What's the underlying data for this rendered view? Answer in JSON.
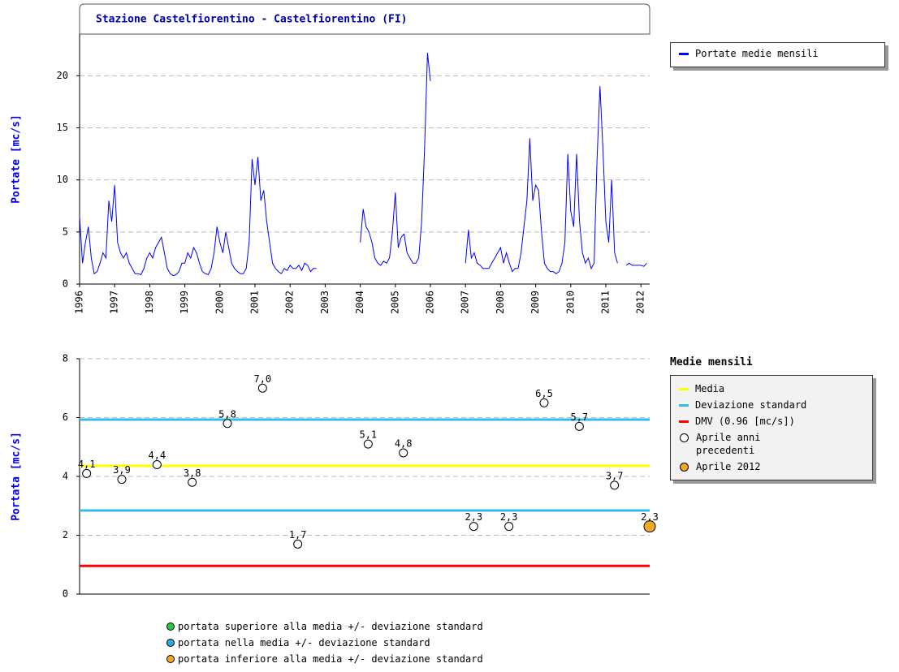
{
  "chart_data": [
    {
      "type": "line",
      "title": "Stazione Castelfiorentino - Castelfiorentino (FI)",
      "ylabel": "Portate [mc/s]",
      "x": [
        1996,
        1996.083,
        1996.167,
        1996.25,
        1996.333,
        1996.417,
        1996.5,
        1996.583,
        1996.667,
        1996.75,
        1996.833,
        1996.917,
        1997,
        1997.083,
        1997.167,
        1997.25,
        1997.333,
        1997.417,
        1997.5,
        1997.583,
        1997.667,
        1997.75,
        1997.833,
        1997.917,
        1998,
        1998.083,
        1998.167,
        1998.25,
        1998.333,
        1998.417,
        1998.5,
        1998.583,
        1998.667,
        1998.75,
        1998.833,
        1998.917,
        1999,
        1999.083,
        1999.167,
        1999.25,
        1999.333,
        1999.417,
        1999.5,
        1999.583,
        1999.667,
        1999.75,
        1999.833,
        1999.917,
        2000,
        2000.083,
        2000.167,
        2000.25,
        2000.333,
        2000.417,
        2000.5,
        2000.583,
        2000.667,
        2000.75,
        2000.833,
        2000.917,
        2001,
        2001.083,
        2001.167,
        2001.25,
        2001.333,
        2001.417,
        2001.5,
        2001.583,
        2001.667,
        2001.75,
        2001.833,
        2001.917,
        2002,
        2002.083,
        2002.167,
        2002.25,
        2002.333,
        2002.417,
        2002.5,
        2002.583,
        2002.667,
        2002.75,
        2003.5,
        2004,
        2004.083,
        2004.167,
        2004.25,
        2004.333,
        2004.417,
        2004.5,
        2004.583,
        2004.667,
        2004.75,
        2004.833,
        2004.917,
        2005,
        2005.083,
        2005.167,
        2005.25,
        2005.333,
        2005.417,
        2005.5,
        2005.583,
        2005.667,
        2005.75,
        2005.833,
        2005.917,
        2006,
        2006.5,
        2007,
        2007.083,
        2007.167,
        2007.25,
        2007.333,
        2007.417,
        2007.5,
        2007.583,
        2007.667,
        2007.75,
        2007.833,
        2007.917,
        2008,
        2008.083,
        2008.167,
        2008.25,
        2008.333,
        2008.417,
        2008.5,
        2008.583,
        2008.667,
        2008.75,
        2008.833,
        2008.917,
        2009,
        2009.083,
        2009.167,
        2009.25,
        2009.333,
        2009.417,
        2009.5,
        2009.583,
        2009.667,
        2009.75,
        2009.833,
        2009.917,
        2010,
        2010.083,
        2010.167,
        2010.25,
        2010.333,
        2010.417,
        2010.5,
        2010.583,
        2010.667,
        2010.75,
        2010.833,
        2010.917,
        2011,
        2011.083,
        2011.167,
        2011.25,
        2011.333,
        2011.45,
        2011.583,
        2011.667,
        2011.75,
        2011.833,
        2011.917,
        2012,
        2012.083,
        2012.167
      ],
      "series": [
        {
          "name": "Portate medie mensili",
          "color": "#0000ff",
          "values": [
            6.5,
            2.0,
            4.0,
            5.5,
            2.5,
            1.0,
            1.2,
            2.0,
            3.0,
            2.5,
            8.0,
            6.0,
            9.5,
            4.0,
            3.0,
            2.5,
            3.0,
            2.0,
            1.5,
            1.0,
            1.0,
            0.9,
            1.5,
            2.5,
            3.0,
            2.5,
            3.5,
            4.0,
            4.5,
            3.0,
            1.5,
            1.0,
            0.8,
            0.9,
            1.2,
            2.0,
            2.0,
            3.0,
            2.5,
            3.5,
            3.0,
            2.0,
            1.2,
            1.0,
            0.9,
            1.5,
            3.0,
            5.5,
            4.0,
            3.0,
            5.0,
            3.5,
            2.0,
            1.5,
            1.2,
            1.0,
            1.0,
            1.5,
            4.0,
            12.0,
            9.5,
            12.2,
            8.0,
            9.0,
            6.0,
            4.0,
            2.0,
            1.5,
            1.2,
            1.0,
            1.5,
            1.3,
            1.8,
            1.5,
            1.5,
            1.8,
            1.3,
            2.0,
            1.8,
            1.2,
            1.5,
            1.5,
            null,
            4.0,
            7.2,
            5.5,
            5.0,
            4.0,
            2.5,
            2.0,
            1.8,
            2.2,
            2.0,
            2.5,
            5.0,
            8.8,
            3.5,
            4.5,
            4.8,
            3.0,
            2.5,
            2.0,
            2.0,
            2.5,
            6.0,
            13.0,
            22.2,
            19.5,
            null,
            2.0,
            5.2,
            2.5,
            3.0,
            2.0,
            1.8,
            1.5,
            1.5,
            1.5,
            2.0,
            2.5,
            3.0,
            3.5,
            2.0,
            3.0,
            2.0,
            1.2,
            1.5,
            1.5,
            3.0,
            5.5,
            8.0,
            14.0,
            8.0,
            9.5,
            9.0,
            5.0,
            2.0,
            1.5,
            1.2,
            1.2,
            1.0,
            1.2,
            2.0,
            4.0,
            12.5,
            7.0,
            5.5,
            12.5,
            6.0,
            3.0,
            2.0,
            2.5,
            1.5,
            2.0,
            12.0,
            19.0,
            13.0,
            6.0,
            4.0,
            10.0,
            3.0,
            2.0,
            null,
            1.8,
            2.0,
            1.8,
            1.8,
            1.8,
            1.8,
            1.7,
            2.0
          ]
        }
      ],
      "xlim": [
        1996,
        2012.25
      ],
      "xticks": [
        1996,
        1997,
        1998,
        1999,
        2000,
        2001,
        2002,
        2003,
        2004,
        2005,
        2006,
        2007,
        2008,
        2009,
        2010,
        2011,
        2012
      ],
      "ylim": [
        0,
        24
      ],
      "yticks": [
        0,
        5,
        10,
        15,
        20
      ],
      "grid": true
    },
    {
      "type": "scatter",
      "legend_title": "Medie mensili",
      "ylabel": "Portata [mc/s]",
      "xlim": [
        1995.8,
        2012
      ],
      "ylim": [
        0,
        8
      ],
      "yticks": [
        0,
        2,
        4,
        6,
        8
      ],
      "grid": true,
      "lines": [
        {
          "name": "Media",
          "color": "#ffff00",
          "values": [
            4.36
          ]
        },
        {
          "name": "Deviazione standard",
          "color": "#33bbee",
          "values": [
            5.93,
            2.84
          ]
        },
        {
          "name": "DMV (0.96 [mc/s])",
          "color": "#ff0000",
          "values": [
            0.96
          ]
        }
      ],
      "series": [
        {
          "name": "Aprile anni precedenti",
          "color": "#ffffff",
          "x": [
            1996,
            1997,
            1998,
            1999,
            2000,
            2001,
            2002,
            2004,
            2005,
            2007,
            2008,
            2009,
            2010,
            2011
          ],
          "values": [
            4.1,
            3.9,
            4.4,
            3.8,
            5.8,
            7.0,
            1.7,
            5.1,
            4.8,
            2.3,
            2.3,
            6.5,
            5.7,
            3.7
          ],
          "value_labels": [
            "4,1",
            "3,9",
            "4,4",
            "3,8",
            "5,8",
            "7,0",
            "1,7",
            "5,1",
            "4,8",
            "2,3",
            "2,3",
            "6,5",
            "5,7",
            "3,7"
          ]
        },
        {
          "name": "Aprile 2012",
          "color": "#f5a623",
          "x": [
            2012
          ],
          "values": [
            2.3
          ],
          "value_labels": [
            "2,3"
          ]
        }
      ],
      "notes": [
        {
          "text": "portata superiore alla media +/- deviazione standard",
          "color": "#22cc44"
        },
        {
          "text": "portata nella media +/- deviazione standard",
          "color": "#2aa8e0"
        },
        {
          "text": "portata inferiore alla media +/- deviazione standard",
          "color": "#f5a623"
        }
      ]
    }
  ]
}
